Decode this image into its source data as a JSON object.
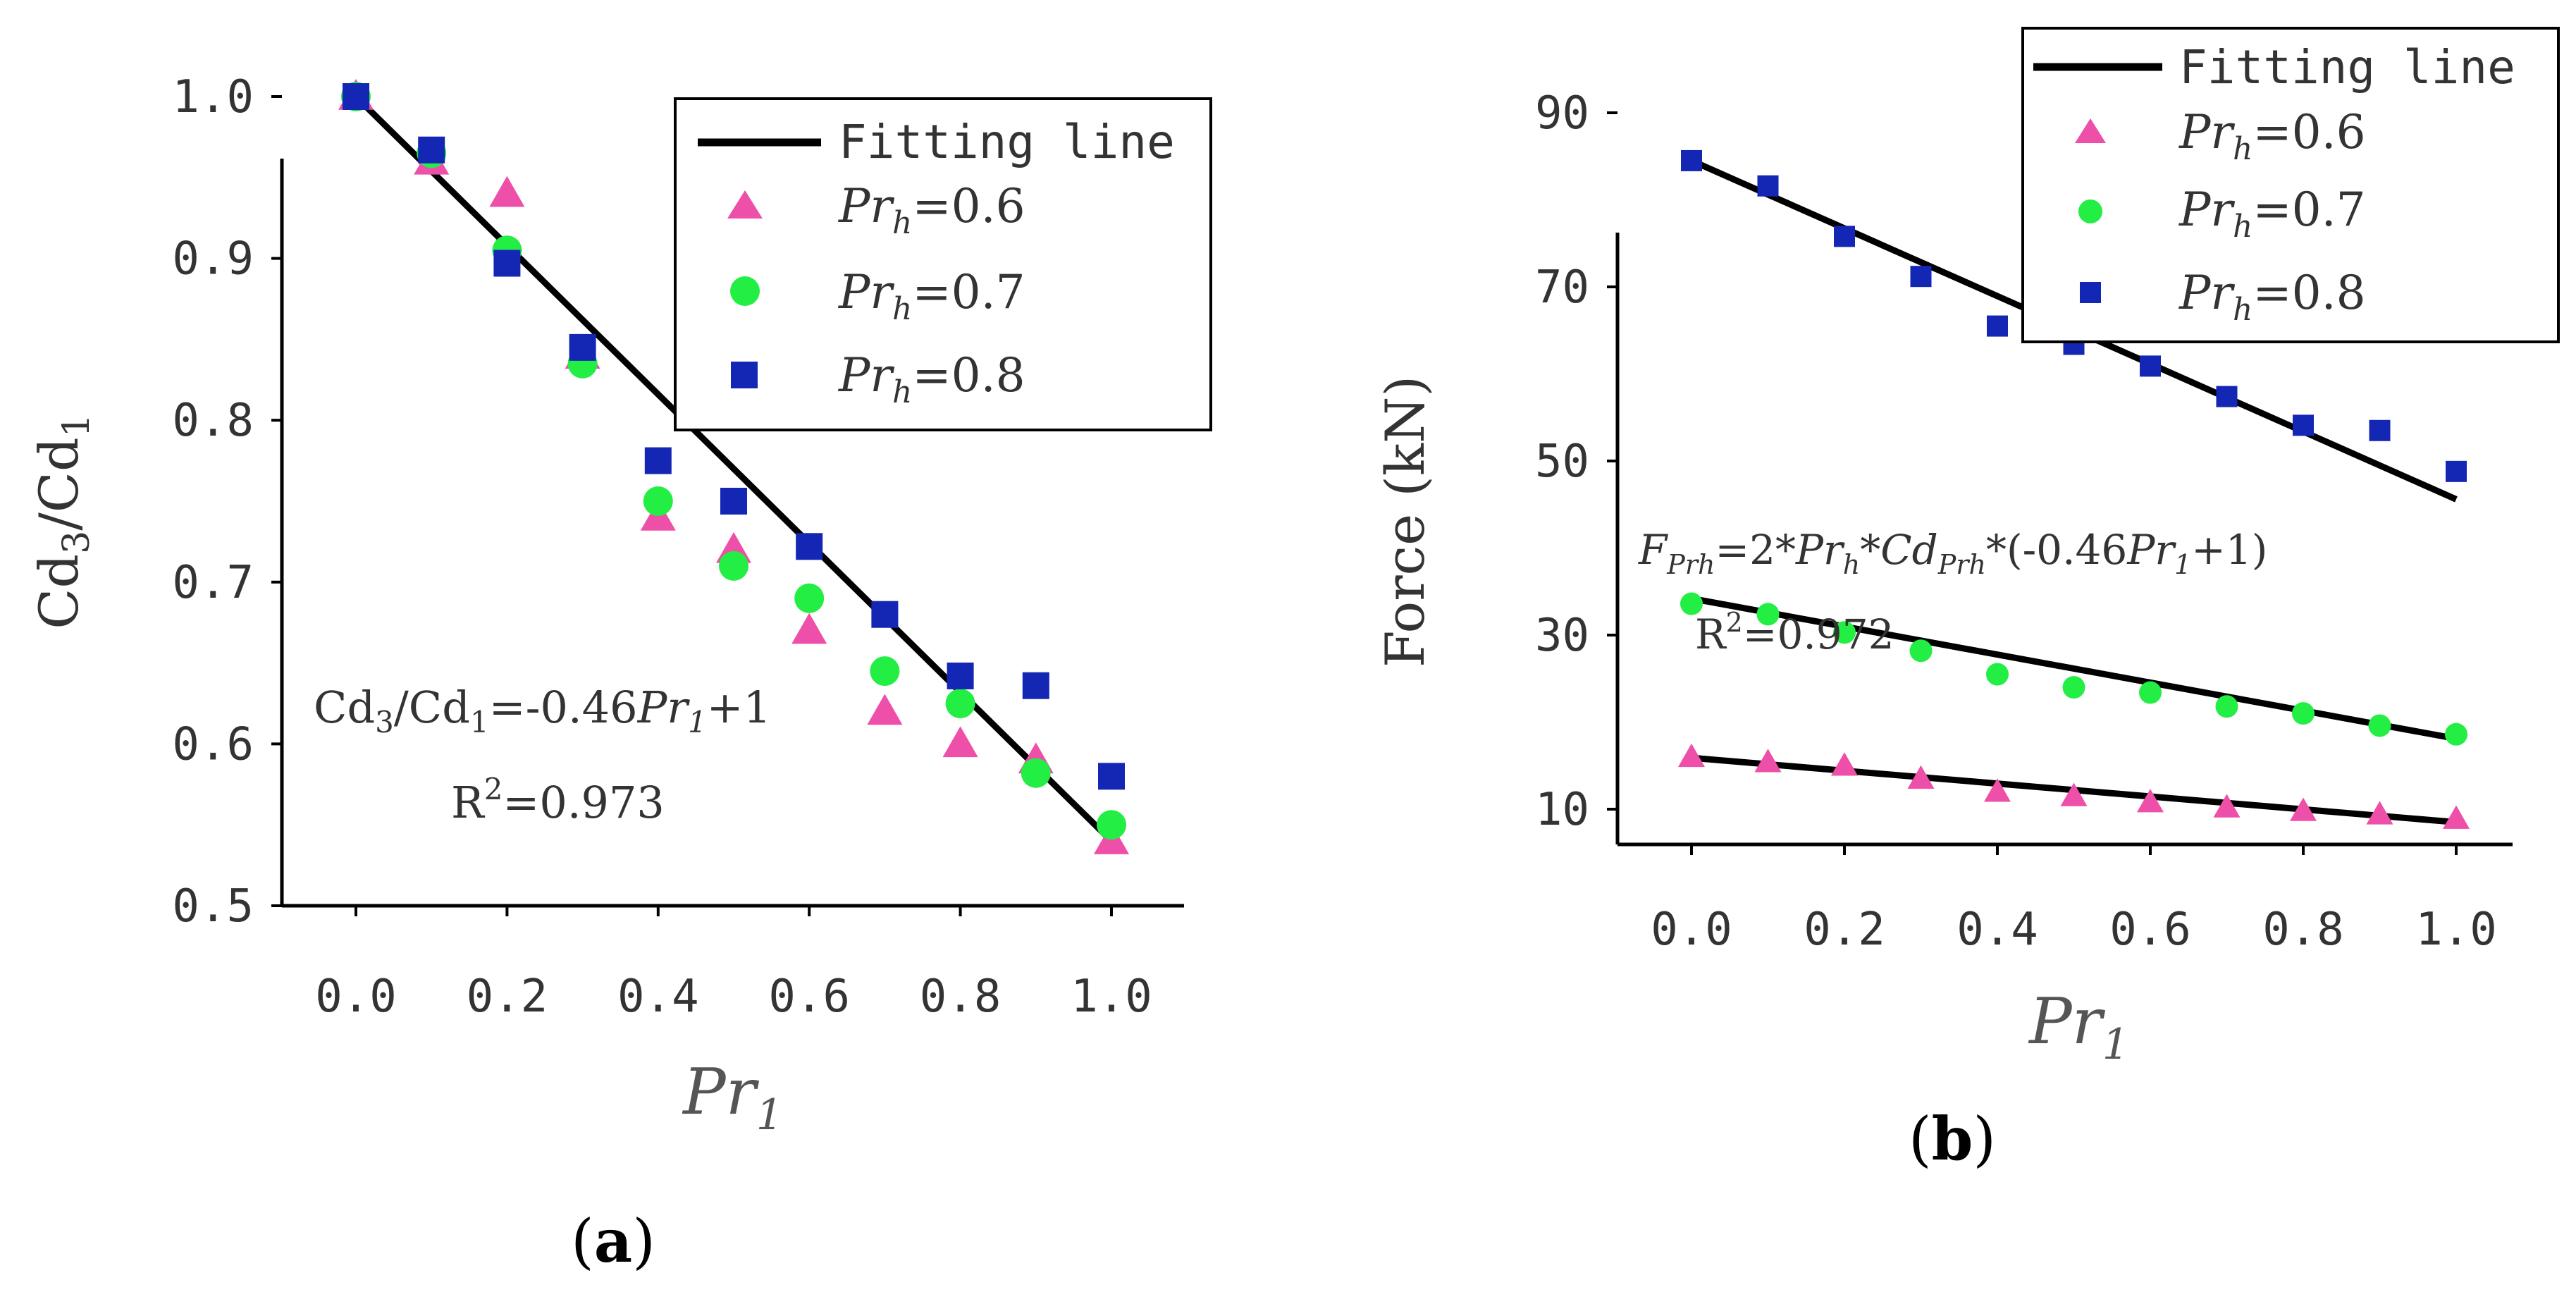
{
  "colors": {
    "pink": "#ee4fa8",
    "green": "#22ee44",
    "blue": "#1426b4",
    "line": "#000000"
  },
  "chart_data": [
    {
      "type": "scatter",
      "panel_label": "a",
      "title": "",
      "xlabel": "Pr",
      "xlabel_sub": "1",
      "ylabel": "Cd",
      "ylabel_sub1": "3",
      "ylabel_mid": "/Cd",
      "ylabel_sub2": "1",
      "xlim": [
        -0.1,
        1.1
      ],
      "ylim": [
        0.5,
        1.05
      ],
      "xticks": [
        0.0,
        0.2,
        0.4,
        0.6,
        0.8,
        1.0
      ],
      "xtick_labels": [
        "0.0",
        "0.2",
        "0.4",
        "0.6",
        "0.8",
        "1.0"
      ],
      "yticks": [
        0.5,
        0.6,
        0.7,
        0.8,
        0.9,
        1.0
      ],
      "ytick_labels": [
        "0.5",
        "0.6",
        "0.7",
        "0.8",
        "0.9",
        "1.0"
      ],
      "x": [
        0.0,
        0.1,
        0.2,
        0.3,
        0.4,
        0.5,
        0.6,
        0.7,
        0.8,
        0.9,
        1.0
      ],
      "legend": {
        "position": "top-right",
        "entries": [
          {
            "kind": "line",
            "label": "Fitting line"
          },
          {
            "kind": "marker",
            "series": "Pr_h=0.6",
            "var": "Pr",
            "sub": "h",
            "rest": "=0.6"
          },
          {
            "kind": "marker",
            "series": "Pr_h=0.7",
            "var": "Pr",
            "sub": "h",
            "rest": "=0.7"
          },
          {
            "kind": "marker",
            "series": "Pr_h=0.8",
            "var": "Pr",
            "sub": "h",
            "rest": "=0.8"
          }
        ]
      },
      "series": [
        {
          "name": "Pr_h=0.6",
          "marker": "triangle",
          "color": "#ee4fa8",
          "values": [
            1.0,
            0.96,
            0.94,
            0.84,
            0.74,
            0.72,
            0.67,
            0.62,
            0.6,
            0.59,
            0.54
          ]
        },
        {
          "name": "Pr_h=0.7",
          "marker": "circle",
          "color": "#22ee44",
          "values": [
            1.0,
            0.965,
            0.905,
            0.835,
            0.75,
            0.71,
            0.69,
            0.645,
            0.625,
            0.582,
            0.55
          ]
        },
        {
          "name": "Pr_h=0.8",
          "marker": "square",
          "color": "#1426b4",
          "values": [
            1.0,
            0.967,
            0.897,
            0.845,
            0.775,
            0.75,
            0.722,
            0.68,
            0.642,
            0.636,
            0.58
          ]
        }
      ],
      "fits": [
        {
          "label": "Fitting line",
          "x": [
            0.0,
            1.0
          ],
          "y": [
            1.0,
            0.54
          ]
        }
      ],
      "annotations": {
        "eq_lhs": "Cd",
        "eq_sub1": "3",
        "eq_mid": "/Cd",
        "eq_sub2": "1",
        "eq_op": "=-0.46",
        "eq_var": "Pr",
        "eq_var_sub": "1",
        "eq_tail": "+1",
        "r2_prefix": "R",
        "r2_sup": "2",
        "r2_value": "=0.973"
      }
    },
    {
      "type": "scatter",
      "panel_label": "b",
      "title": "",
      "xlabel": "Pr",
      "xlabel_sub": "1",
      "ylabel": "Force (kN)",
      "xlim": [
        -0.1,
        1.1
      ],
      "ylim": [
        5,
        92
      ],
      "xticks": [
        0.0,
        0.2,
        0.4,
        0.6,
        0.8,
        1.0
      ],
      "xtick_labels": [
        "0.0",
        "0.2",
        "0.4",
        "0.6",
        "0.8",
        "1.0"
      ],
      "yticks": [
        10,
        30,
        50,
        70,
        90
      ],
      "ytick_labels": [
        "10",
        "30",
        "50",
        "70",
        "90"
      ],
      "x": [
        0.0,
        0.1,
        0.2,
        0.3,
        0.4,
        0.5,
        0.6,
        0.7,
        0.8,
        0.9,
        1.0
      ],
      "legend": {
        "position": "top-right",
        "entries": [
          {
            "kind": "line",
            "label": "Fitting line"
          },
          {
            "kind": "marker",
            "series": "Pr_h=0.6",
            "var": "Pr",
            "sub": "h",
            "rest": "=0.6"
          },
          {
            "kind": "marker",
            "series": "Pr_h=0.7",
            "var": "Pr",
            "sub": "h",
            "rest": "=0.7"
          },
          {
            "kind": "marker",
            "series": "Pr_h=0.8",
            "var": "Pr",
            "sub": "h",
            "rest": "=0.8"
          }
        ]
      },
      "series": [
        {
          "name": "Pr_h=0.6",
          "marker": "triangle",
          "color": "#ee4fa8",
          "values": [
            16,
            15.4,
            15,
            13.5,
            12,
            11.5,
            10.8,
            10.2,
            9.8,
            9.4,
            8.9
          ]
        },
        {
          "name": "Pr_h=0.7",
          "marker": "circle",
          "color": "#22ee44",
          "values": [
            33.6,
            32.4,
            30.3,
            28.2,
            25.5,
            24,
            23.4,
            21.8,
            21,
            19.6,
            18.6
          ]
        },
        {
          "name": "Pr_h=0.8",
          "marker": "square",
          "color": "#1426b4",
          "values": [
            84.5,
            81.6,
            75.8,
            71.2,
            65.5,
            63.4,
            60.9,
            57.4,
            54.1,
            53.5,
            48.8
          ]
        }
      ],
      "fits": [
        {
          "label": "Fitting line",
          "x": [
            0.0,
            1.0
          ],
          "y": [
            84.5,
            45.6
          ]
        },
        {
          "label": "Fitting line",
          "x": [
            0.0,
            1.0
          ],
          "y": [
            34.2,
            18.1
          ]
        },
        {
          "label": "Fitting line",
          "x": [
            0.0,
            1.0
          ],
          "y": [
            15.9,
            8.5
          ]
        }
      ],
      "annotations": {
        "eq_F": "F",
        "eq_F_sub": "Prh",
        "eq_a": "=2*",
        "eq_var": "Pr",
        "eq_var_sub": "h",
        "eq_b": "*",
        "eq_Cd": "Cd",
        "eq_Cd_sub": "Prh",
        "eq_c": "*(-0.46",
        "eq_var2": "Pr",
        "eq_var2_sub": "1",
        "eq_tail": "+1)",
        "r2_prefix": "R",
        "r2_sup": "2",
        "r2_value": "=0.972"
      }
    }
  ]
}
